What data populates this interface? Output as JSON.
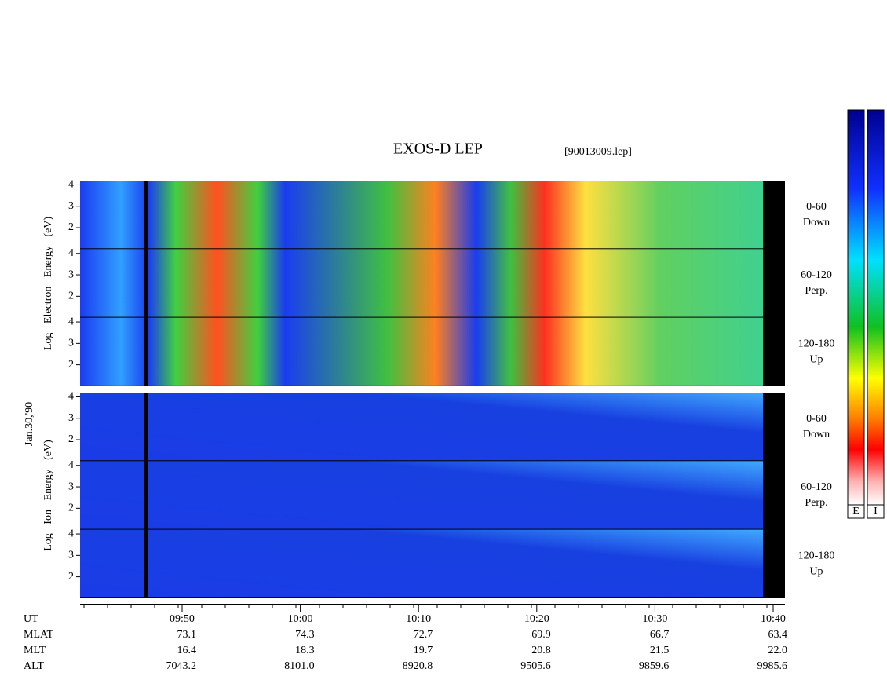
{
  "header": {
    "title": "EXOS-D LEP",
    "file": "[90013009.lep]"
  },
  "date": "Jan.30,'90",
  "energy_axis": {
    "ylim": [
      1,
      4.2
    ],
    "yticks": [
      2,
      3,
      4
    ]
  },
  "groups": [
    {
      "label": "Log Electron Energy (eV)",
      "panels": [
        {
          "angle": "0-60",
          "direction": "Down"
        },
        {
          "angle": "60-120",
          "direction": "Perp."
        },
        {
          "angle": "120-180",
          "direction": "Up"
        }
      ]
    },
    {
      "label": "Log Ion Energy (eV)",
      "panels": [
        {
          "angle": "0-60",
          "direction": "Down"
        },
        {
          "angle": "60-120",
          "direction": "Perp."
        },
        {
          "angle": "120-180",
          "direction": "Up"
        }
      ]
    }
  ],
  "time_axis": {
    "rows": [
      {
        "name": "UT",
        "values": [
          "09:50",
          "10:00",
          "10:10",
          "10:20",
          "10:30",
          "10:40"
        ]
      },
      {
        "name": "MLAT",
        "values": [
          "73.1",
          "74.3",
          "72.7",
          "69.9",
          "66.7",
          "63.4"
        ]
      },
      {
        "name": "MLT",
        "values": [
          "16.4",
          "18.3",
          "19.7",
          "20.8",
          "21.5",
          "22.0"
        ]
      },
      {
        "name": "ALT",
        "values": [
          "7043.2",
          "8101.0",
          "8920.8",
          "9505.6",
          "9859.6",
          "9985.6"
        ]
      }
    ]
  },
  "colorbar": {
    "labels": [
      "E",
      "I"
    ]
  }
}
